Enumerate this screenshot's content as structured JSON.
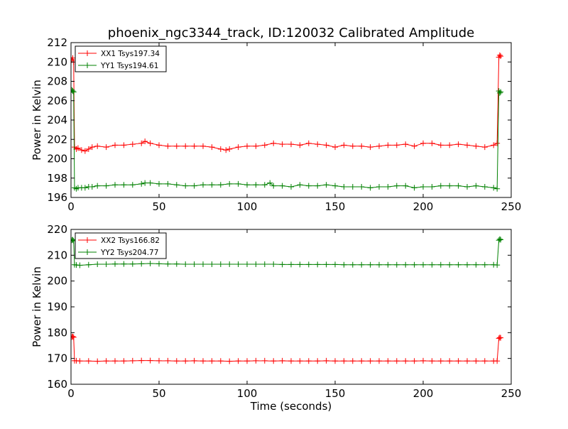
{
  "figure": {
    "title": "phoenix_ngc3344_track, ID:120032 Calibrated Amplitude"
  },
  "colors": {
    "red": "#ff0000",
    "green": "#008000"
  },
  "chart_data": [
    {
      "type": "line",
      "title": "phoenix_ngc3344_track, ID:120032 Calibrated Amplitude",
      "xlabel": "",
      "ylabel": "Power in Kelvin",
      "xlim": [
        0,
        250
      ],
      "ylim": [
        196,
        212
      ],
      "xticks": [
        0,
        50,
        100,
        150,
        200,
        250
      ],
      "yticks": [
        196,
        198,
        200,
        202,
        204,
        206,
        208,
        210,
        212
      ],
      "legend_position": "top-left",
      "grid": false,
      "series": [
        {
          "name": "XX1 Tsys197.34",
          "color": "#ff0000",
          "marker": "+",
          "x": [
            0.5,
            1,
            1.5,
            2,
            3,
            4,
            6,
            8,
            10,
            12,
            15,
            20,
            25,
            30,
            35,
            40,
            42,
            45,
            50,
            55,
            60,
            65,
            70,
            75,
            80,
            85,
            88,
            90,
            95,
            100,
            105,
            110,
            115,
            120,
            125,
            130,
            135,
            140,
            145,
            150,
            155,
            160,
            165,
            170,
            175,
            180,
            185,
            190,
            195,
            200,
            205,
            210,
            215,
            220,
            225,
            230,
            235,
            240,
            242,
            243,
            243.5,
            244
          ],
          "y": [
            210.2,
            210.4,
            210.0,
            201.2,
            201.0,
            201.1,
            200.9,
            200.8,
            201.0,
            201.2,
            201.3,
            201.2,
            201.4,
            201.4,
            201.5,
            201.6,
            201.8,
            201.6,
            201.4,
            201.3,
            201.3,
            201.3,
            201.3,
            201.3,
            201.2,
            201.0,
            200.9,
            201.0,
            201.2,
            201.3,
            201.3,
            201.4,
            201.6,
            201.5,
            201.5,
            201.4,
            201.6,
            201.5,
            201.4,
            201.2,
            201.4,
            201.3,
            201.3,
            201.2,
            201.3,
            201.4,
            201.4,
            201.5,
            201.3,
            201.6,
            201.6,
            201.4,
            201.4,
            201.5,
            201.4,
            201.3,
            201.2,
            201.4,
            201.6,
            210.5,
            210.7,
            210.6
          ]
        },
        {
          "name": "YY1 Tsys194.61",
          "color": "#008000",
          "marker": "+",
          "x": [
            0.5,
            1,
            1.5,
            2,
            3,
            4,
            6,
            8,
            10,
            12,
            15,
            20,
            25,
            30,
            35,
            40,
            42,
            45,
            50,
            55,
            60,
            65,
            70,
            75,
            80,
            85,
            90,
            95,
            100,
            105,
            110,
            113,
            115,
            120,
            125,
            130,
            135,
            140,
            145,
            150,
            155,
            160,
            165,
            170,
            175,
            180,
            185,
            190,
            195,
            200,
            205,
            210,
            215,
            220,
            225,
            230,
            235,
            240,
            242,
            243,
            243.5,
            244
          ],
          "y": [
            207.1,
            207.0,
            206.9,
            197.0,
            196.9,
            197.0,
            197.0,
            197.0,
            197.1,
            197.1,
            197.2,
            197.2,
            197.3,
            197.3,
            197.3,
            197.4,
            197.5,
            197.5,
            197.4,
            197.4,
            197.3,
            197.2,
            197.2,
            197.3,
            197.3,
            197.3,
            197.4,
            197.4,
            197.3,
            197.3,
            197.3,
            197.5,
            197.2,
            197.2,
            197.1,
            197.3,
            197.2,
            197.2,
            197.3,
            197.2,
            197.1,
            197.1,
            197.1,
            197.0,
            197.1,
            197.1,
            197.2,
            197.2,
            197.0,
            197.1,
            197.1,
            197.2,
            197.2,
            197.2,
            197.1,
            197.2,
            197.1,
            197.0,
            196.9,
            207.0,
            206.8,
            206.9
          ]
        }
      ]
    },
    {
      "type": "line",
      "title": "",
      "xlabel": "Time (seconds)",
      "ylabel": "Power in Kelvin",
      "xlim": [
        0,
        250
      ],
      "ylim": [
        160,
        220
      ],
      "xticks": [
        0,
        50,
        100,
        150,
        200,
        250
      ],
      "yticks": [
        160,
        170,
        180,
        190,
        200,
        210,
        220
      ],
      "legend_position": "top-left",
      "grid": false,
      "series": [
        {
          "name": "XX2 Tsys166.82",
          "color": "#ff0000",
          "marker": "+",
          "x": [
            0.5,
            1,
            1.5,
            2,
            3,
            5,
            10,
            15,
            20,
            25,
            30,
            35,
            40,
            45,
            50,
            55,
            60,
            65,
            70,
            75,
            80,
            85,
            90,
            95,
            100,
            105,
            110,
            115,
            120,
            125,
            130,
            135,
            140,
            145,
            150,
            155,
            160,
            165,
            170,
            175,
            180,
            185,
            190,
            195,
            200,
            205,
            210,
            215,
            220,
            225,
            230,
            235,
            240,
            242,
            243,
            243.5,
            244
          ],
          "y": [
            178.3,
            178.5,
            178.2,
            169.1,
            169.1,
            169.0,
            169.0,
            168.9,
            169.0,
            169.0,
            169.0,
            169.1,
            169.2,
            169.2,
            169.1,
            169.1,
            169.0,
            169.0,
            169.1,
            169.0,
            169.0,
            169.0,
            168.9,
            169.0,
            169.0,
            169.1,
            169.1,
            169.0,
            169.1,
            169.0,
            169.0,
            169.0,
            169.0,
            169.1,
            169.0,
            169.0,
            169.0,
            169.0,
            169.0,
            169.0,
            169.0,
            169.0,
            169.0,
            169.0,
            169.1,
            169.0,
            169.0,
            169.0,
            169.0,
            169.0,
            169.0,
            169.0,
            169.0,
            169.0,
            177.8,
            178.1,
            178.0
          ]
        },
        {
          "name": "YY2 Tsys204.77",
          "color": "#008000",
          "marker": "+",
          "x": [
            0.5,
            1,
            1.5,
            2,
            3,
            5,
            10,
            15,
            20,
            25,
            30,
            35,
            40,
            45,
            50,
            55,
            60,
            65,
            70,
            75,
            80,
            85,
            90,
            95,
            100,
            105,
            110,
            115,
            120,
            125,
            130,
            135,
            140,
            145,
            150,
            155,
            160,
            165,
            170,
            175,
            180,
            185,
            190,
            195,
            200,
            205,
            210,
            215,
            220,
            225,
            230,
            235,
            240,
            242,
            243,
            243.5,
            244
          ],
          "y": [
            215.8,
            216.0,
            215.6,
            206.3,
            206.2,
            206.1,
            206.3,
            206.5,
            206.5,
            206.6,
            206.6,
            206.6,
            206.7,
            206.8,
            206.7,
            206.6,
            206.6,
            206.5,
            206.5,
            206.5,
            206.5,
            206.5,
            206.5,
            206.5,
            206.5,
            206.5,
            206.5,
            206.5,
            206.4,
            206.4,
            206.4,
            206.4,
            206.4,
            206.4,
            206.4,
            206.3,
            206.3,
            206.3,
            206.3,
            206.3,
            206.3,
            206.3,
            206.3,
            206.3,
            206.3,
            206.3,
            206.3,
            206.3,
            206.3,
            206.3,
            206.3,
            206.3,
            206.3,
            206.2,
            215.8,
            216.2,
            216.0
          ]
        }
      ]
    }
  ]
}
